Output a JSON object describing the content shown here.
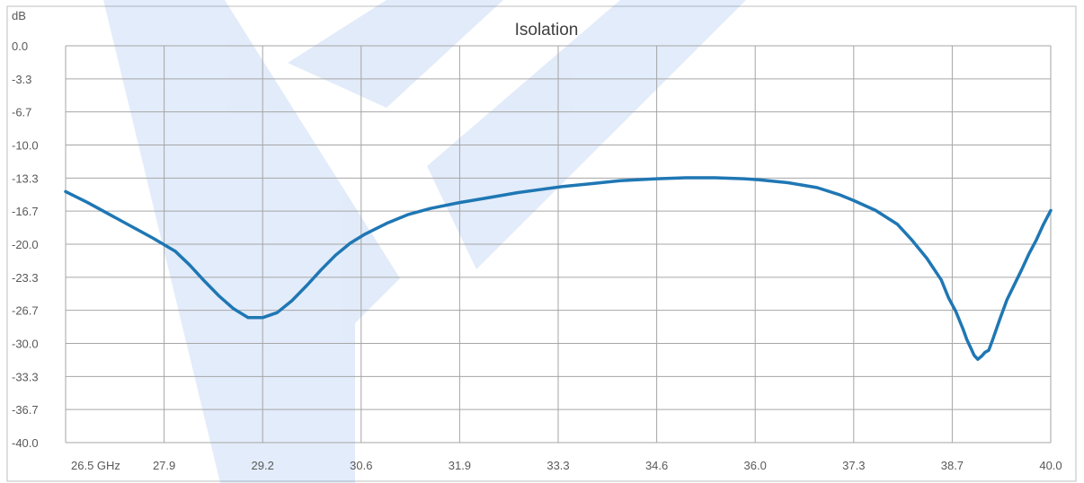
{
  "chart_data": {
    "type": "line",
    "title": "Isolation",
    "ylabel": "dB",
    "xlabel": "",
    "xlim": [
      26.5,
      40.0
    ],
    "ylim": [
      -40.0,
      0.0
    ],
    "x_ticks": [
      "26.5 GHz",
      "27.9",
      "29.2",
      "30.6",
      "31.9",
      "33.3",
      "34.6",
      "36.0",
      "37.3",
      "38.7",
      "40.0"
    ],
    "y_ticks": [
      "0.0",
      "-3.3",
      "-6.7",
      "-10.0",
      "-13.3",
      "-16.7",
      "-20.0",
      "-23.3",
      "-26.7",
      "-30.0",
      "-33.3",
      "-36.7",
      "-40.0"
    ],
    "grid": true,
    "legend": "none",
    "series": [
      {
        "color": "#1f77b4",
        "points": [
          [
            26.5,
            -14.7
          ],
          [
            26.8,
            -15.8
          ],
          [
            27.1,
            -17.0
          ],
          [
            27.4,
            -18.2
          ],
          [
            27.7,
            -19.4
          ],
          [
            28.0,
            -20.7
          ],
          [
            28.2,
            -22.1
          ],
          [
            28.4,
            -23.7
          ],
          [
            28.6,
            -25.2
          ],
          [
            28.8,
            -26.5
          ],
          [
            29.0,
            -27.4
          ],
          [
            29.2,
            -27.4
          ],
          [
            29.4,
            -26.9
          ],
          [
            29.6,
            -25.7
          ],
          [
            29.8,
            -24.2
          ],
          [
            30.0,
            -22.6
          ],
          [
            30.2,
            -21.1
          ],
          [
            30.4,
            -19.9
          ],
          [
            30.6,
            -19.0
          ],
          [
            30.9,
            -17.9
          ],
          [
            31.2,
            -17.0
          ],
          [
            31.5,
            -16.4
          ],
          [
            31.9,
            -15.8
          ],
          [
            32.3,
            -15.3
          ],
          [
            32.7,
            -14.8
          ],
          [
            33.0,
            -14.5
          ],
          [
            33.3,
            -14.2
          ],
          [
            33.7,
            -13.9
          ],
          [
            34.1,
            -13.6
          ],
          [
            34.6,
            -13.4
          ],
          [
            35.0,
            -13.3
          ],
          [
            35.4,
            -13.3
          ],
          [
            35.8,
            -13.4
          ],
          [
            36.0,
            -13.5
          ],
          [
            36.4,
            -13.8
          ],
          [
            36.8,
            -14.3
          ],
          [
            37.1,
            -15.0
          ],
          [
            37.3,
            -15.6
          ],
          [
            37.6,
            -16.6
          ],
          [
            37.9,
            -18.0
          ],
          [
            38.1,
            -19.6
          ],
          [
            38.3,
            -21.4
          ],
          [
            38.5,
            -23.6
          ],
          [
            38.6,
            -25.4
          ],
          [
            38.7,
            -26.8
          ],
          [
            38.8,
            -28.6
          ],
          [
            38.85,
            -29.6
          ],
          [
            38.9,
            -30.4
          ],
          [
            38.95,
            -31.2
          ],
          [
            39.0,
            -31.6
          ],
          [
            39.05,
            -31.3
          ],
          [
            39.1,
            -30.9
          ],
          [
            39.15,
            -30.7
          ],
          [
            39.2,
            -29.7
          ],
          [
            39.3,
            -27.6
          ],
          [
            39.4,
            -25.6
          ],
          [
            39.5,
            -24.1
          ],
          [
            39.6,
            -22.6
          ],
          [
            39.7,
            -21.0
          ],
          [
            39.8,
            -19.6
          ],
          [
            39.9,
            -18.0
          ],
          [
            40.0,
            -16.6
          ]
        ]
      }
    ]
  }
}
